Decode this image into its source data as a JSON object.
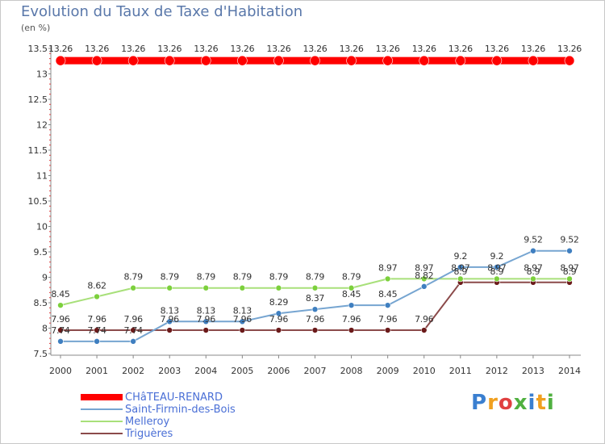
{
  "title": "Evolution du Taux de Taxe d'Habitation",
  "unit_label": "(en %)",
  "logo_text": "Proxiti",
  "chart_data": {
    "type": "line",
    "title": "Evolution du Taux de Taxe d'Habitation",
    "ylabel": "(en %)",
    "xlabel": "",
    "x": [
      2000,
      2001,
      2002,
      2003,
      2004,
      2005,
      2006,
      2007,
      2008,
      2009,
      2010,
      2011,
      2012,
      2013,
      2014
    ],
    "ylim": [
      7.5,
      13.5
    ],
    "yticks": [
      7.5,
      8,
      8.5,
      9,
      9.5,
      10,
      10.5,
      11,
      11.5,
      12,
      12.5,
      13,
      13.5
    ],
    "grid": false,
    "legend_position": "bottom-left",
    "series": [
      {
        "name": "CHâTEAU-RENARD",
        "color": "#ff0000",
        "marker_color": "#ff0000",
        "width": 9,
        "marker_r": 6,
        "values": [
          13.26,
          13.26,
          13.26,
          13.26,
          13.26,
          13.26,
          13.26,
          13.26,
          13.26,
          13.26,
          13.26,
          13.26,
          13.26,
          13.26,
          13.26
        ]
      },
      {
        "name": "Saint-Firmin-des-Bois",
        "color": "#76a5d1",
        "marker_color": "#3f7fc0",
        "width": 2,
        "marker_r": 3.5,
        "values": [
          7.74,
          7.74,
          7.74,
          8.13,
          8.13,
          8.13,
          8.29,
          8.37,
          8.45,
          8.45,
          8.82,
          9.2,
          9.2,
          9.52,
          9.52
        ]
      },
      {
        "name": "Melleroy",
        "color": "#a8e07a",
        "marker_color": "#7cd03c",
        "width": 2,
        "marker_r": 3.5,
        "values": [
          8.45,
          8.62,
          8.79,
          8.79,
          8.79,
          8.79,
          8.79,
          8.79,
          8.79,
          8.97,
          8.97,
          8.97,
          8.97,
          8.97,
          8.97
        ]
      },
      {
        "name": "Triguères",
        "color": "#8b4a4a",
        "marker_color": "#6b1a1a",
        "width": 2,
        "marker_r": 3.5,
        "values": [
          7.96,
          7.96,
          7.96,
          7.96,
          7.96,
          7.96,
          7.96,
          7.96,
          7.96,
          7.96,
          7.96,
          8.9,
          8.9,
          8.9,
          8.9
        ]
      }
    ]
  }
}
